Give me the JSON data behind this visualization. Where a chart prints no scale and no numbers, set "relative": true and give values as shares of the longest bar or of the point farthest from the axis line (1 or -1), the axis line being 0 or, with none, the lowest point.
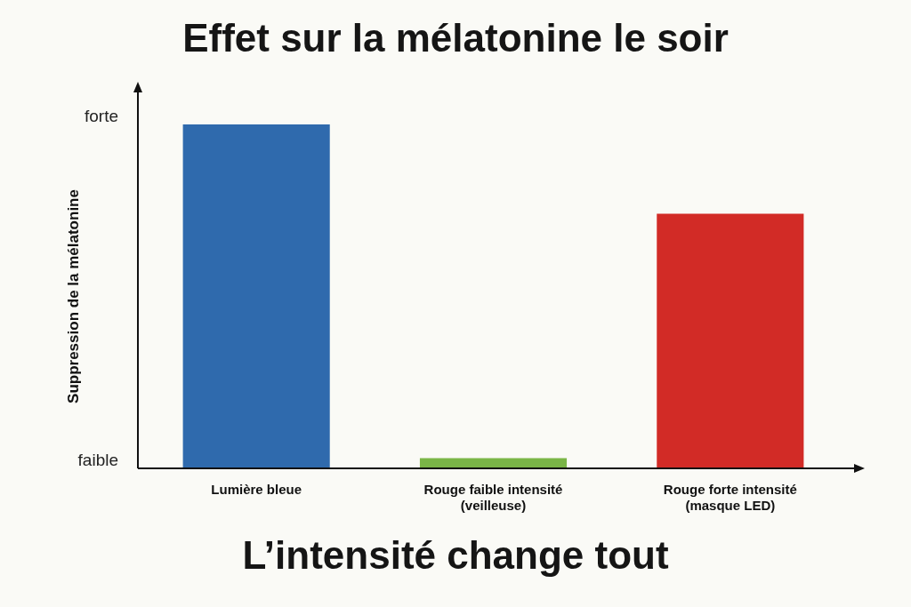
{
  "chart_data": {
    "type": "bar",
    "title": "Effet sur la mélatonine le soir",
    "subtitle": "L’intensité change tout",
    "ylabel": "Suppression de la mélatonine",
    "categories": [
      "Lumière bleue",
      "Rouge faible intensité\n(veilleuse)",
      "Rouge forte intensité\n(masque LED)"
    ],
    "values": [
      1,
      0.03,
      0.74
    ],
    "relative": true,
    "annotations": [
      "faible",
      "forte"
    ],
    "colors": [
      "#2f6aad",
      "#7ab547",
      "#d22b26"
    ],
    "grid": false,
    "legend": false
  }
}
